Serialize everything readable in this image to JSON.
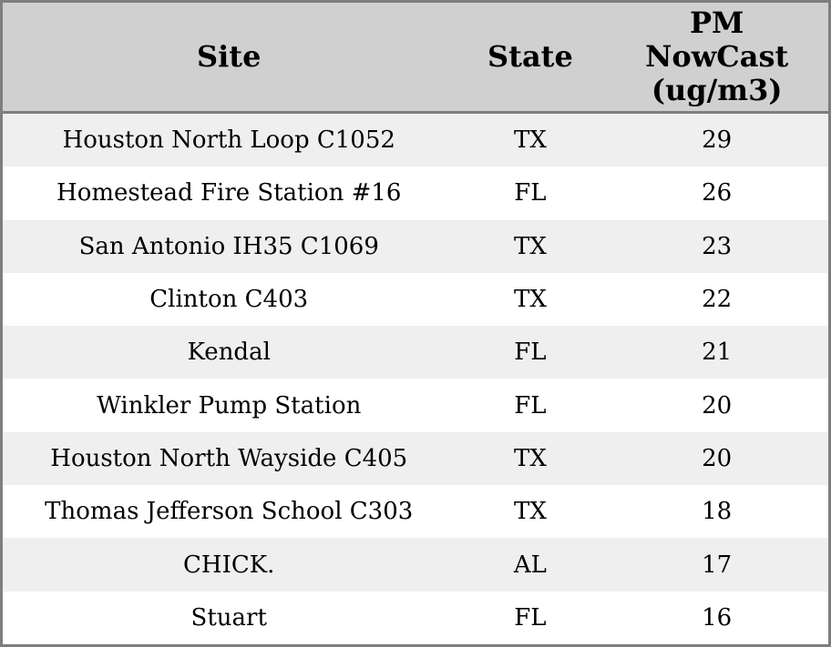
{
  "chart_data": {
    "type": "table",
    "title": "",
    "columns": [
      {
        "id": "site",
        "label": "Site",
        "lines": [
          "Site"
        ]
      },
      {
        "id": "state",
        "label": "State",
        "lines": [
          "State"
        ]
      },
      {
        "id": "pm_nowcast",
        "label": "PM NowCast (ug/m3)",
        "lines": [
          "PM",
          "NowCast",
          "(ug/m3)"
        ]
      }
    ],
    "rows": [
      {
        "site": "Houston North Loop C1052",
        "state": "TX",
        "pm": "29"
      },
      {
        "site": "Homestead Fire Station #16",
        "state": "FL",
        "pm": "26"
      },
      {
        "site": "San Antonio IH35 C1069",
        "state": "TX",
        "pm": "23"
      },
      {
        "site": "Clinton C403",
        "state": "TX",
        "pm": "22"
      },
      {
        "site": "Kendal",
        "state": "FL",
        "pm": "21"
      },
      {
        "site": "Winkler Pump Station",
        "state": "FL",
        "pm": "20"
      },
      {
        "site": "Houston North Wayside C405",
        "state": "TX",
        "pm": "20"
      },
      {
        "site": "Thomas Jefferson School C303",
        "state": "TX",
        "pm": "18"
      },
      {
        "site": "CHICK.",
        "state": "AL",
        "pm": "17"
      },
      {
        "site": "Stuart",
        "state": "FL",
        "pm": "16"
      }
    ]
  },
  "colors": {
    "outer_border": "#7e7e7e",
    "header_bg": "#d0d0d0",
    "header_divider": "#7e7e7e",
    "row_stripe_bg": "#efefef",
    "row_bg": "#ffffff",
    "text": "#000000"
  }
}
